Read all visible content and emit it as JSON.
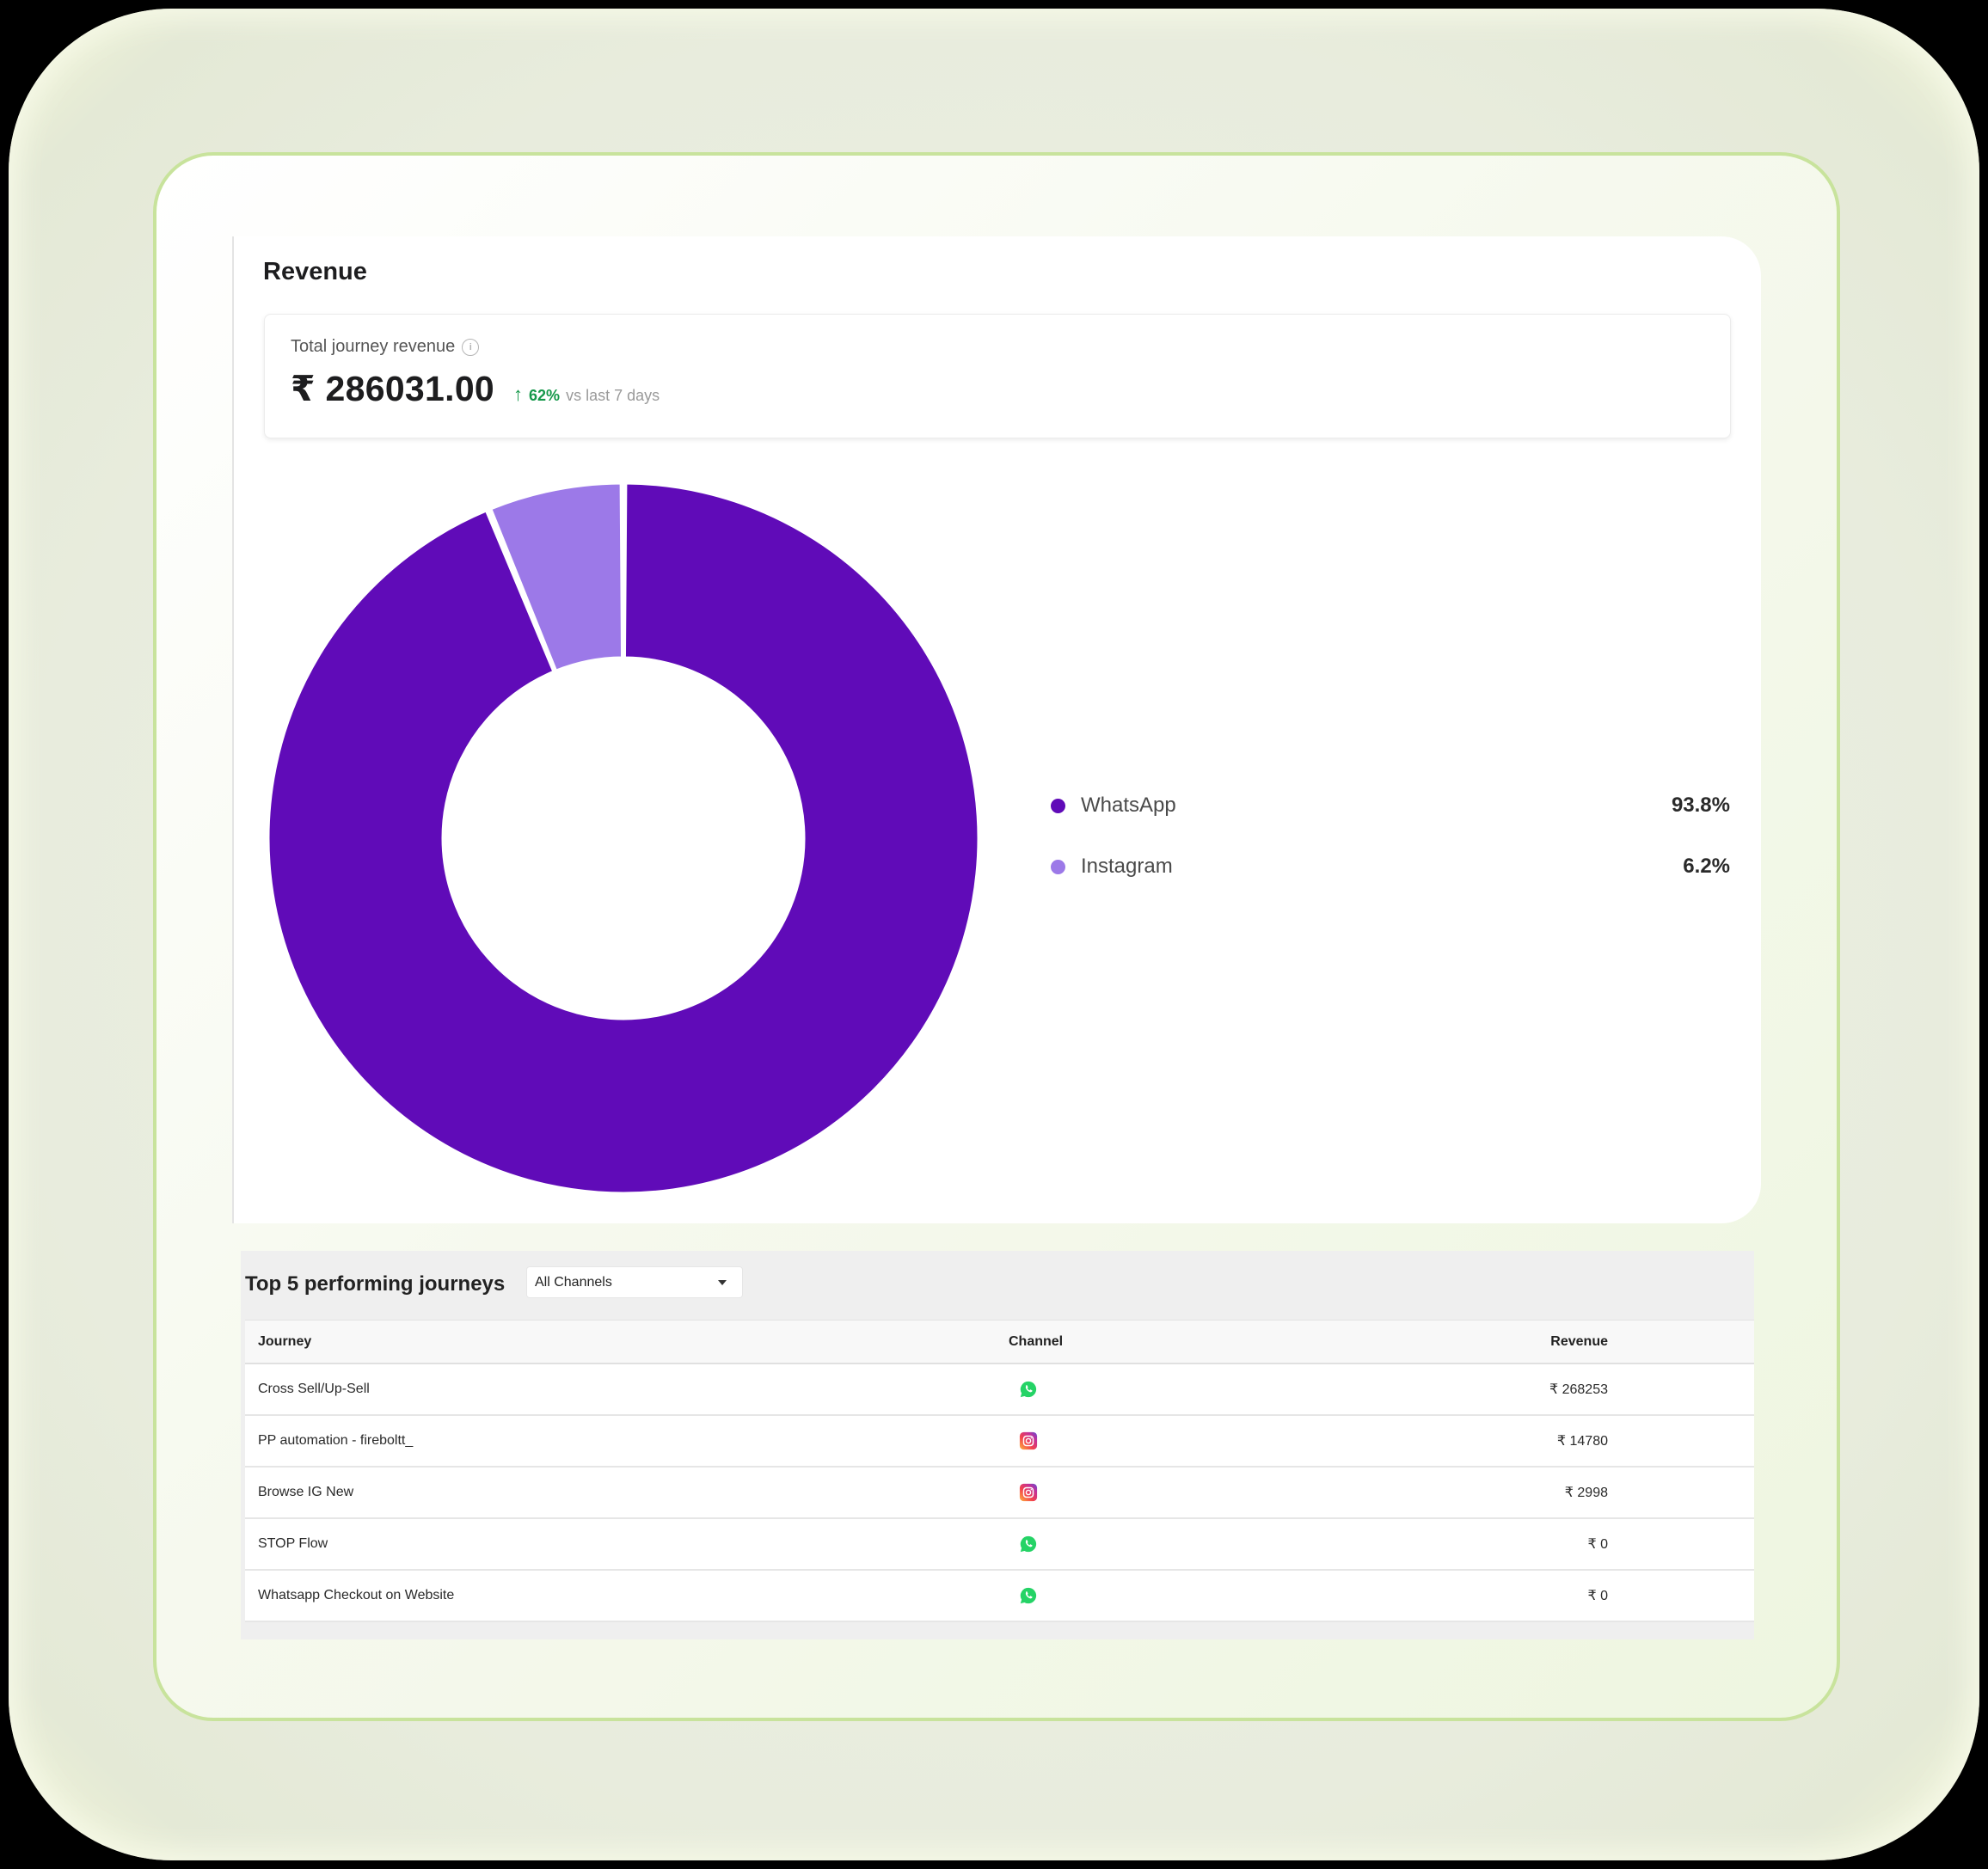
{
  "panel": {
    "title": "Revenue"
  },
  "metric": {
    "label": "Total journey revenue",
    "info_icon": "info-icon",
    "value": "₹ 286031.00",
    "delta_arrow": "↑",
    "delta_percent": "62%",
    "delta_text": "vs last 7 days",
    "delta_color": "#15984a"
  },
  "legend": [
    {
      "label": "WhatsApp",
      "value": "93.8%",
      "color": "#600bb8"
    },
    {
      "label": "Instagram",
      "value": "6.2%",
      "color": "#9c79e8"
    }
  ],
  "chart_data": {
    "type": "pie",
    "subtype": "donut",
    "title": "Revenue",
    "categories": [
      "WhatsApp",
      "Instagram"
    ],
    "values": [
      93.8,
      6.2
    ],
    "unit": "%",
    "colors": [
      "#600bb8",
      "#9c79e8"
    ],
    "legend_position": "right",
    "total_label": "Total journey revenue",
    "total_value": "₹ 286031.00"
  },
  "table": {
    "title": "Top 5 performing journeys",
    "filter": {
      "selected": "All Channels"
    },
    "columns": [
      "Journey",
      "Channel",
      "Revenue"
    ],
    "rows": [
      {
        "journey": "Cross Sell/Up-Sell",
        "channel": "whatsapp",
        "revenue": "₹ 268253"
      },
      {
        "journey": "PP automation - fireboltt_",
        "channel": "instagram",
        "revenue": "₹ 14780"
      },
      {
        "journey": "Browse IG New",
        "channel": "instagram",
        "revenue": "₹ 2998"
      },
      {
        "journey": "STOP Flow",
        "channel": "whatsapp",
        "revenue": "₹ 0"
      },
      {
        "journey": "Whatsapp Checkout on Website",
        "channel": "whatsapp",
        "revenue": "₹ 0"
      }
    ]
  }
}
